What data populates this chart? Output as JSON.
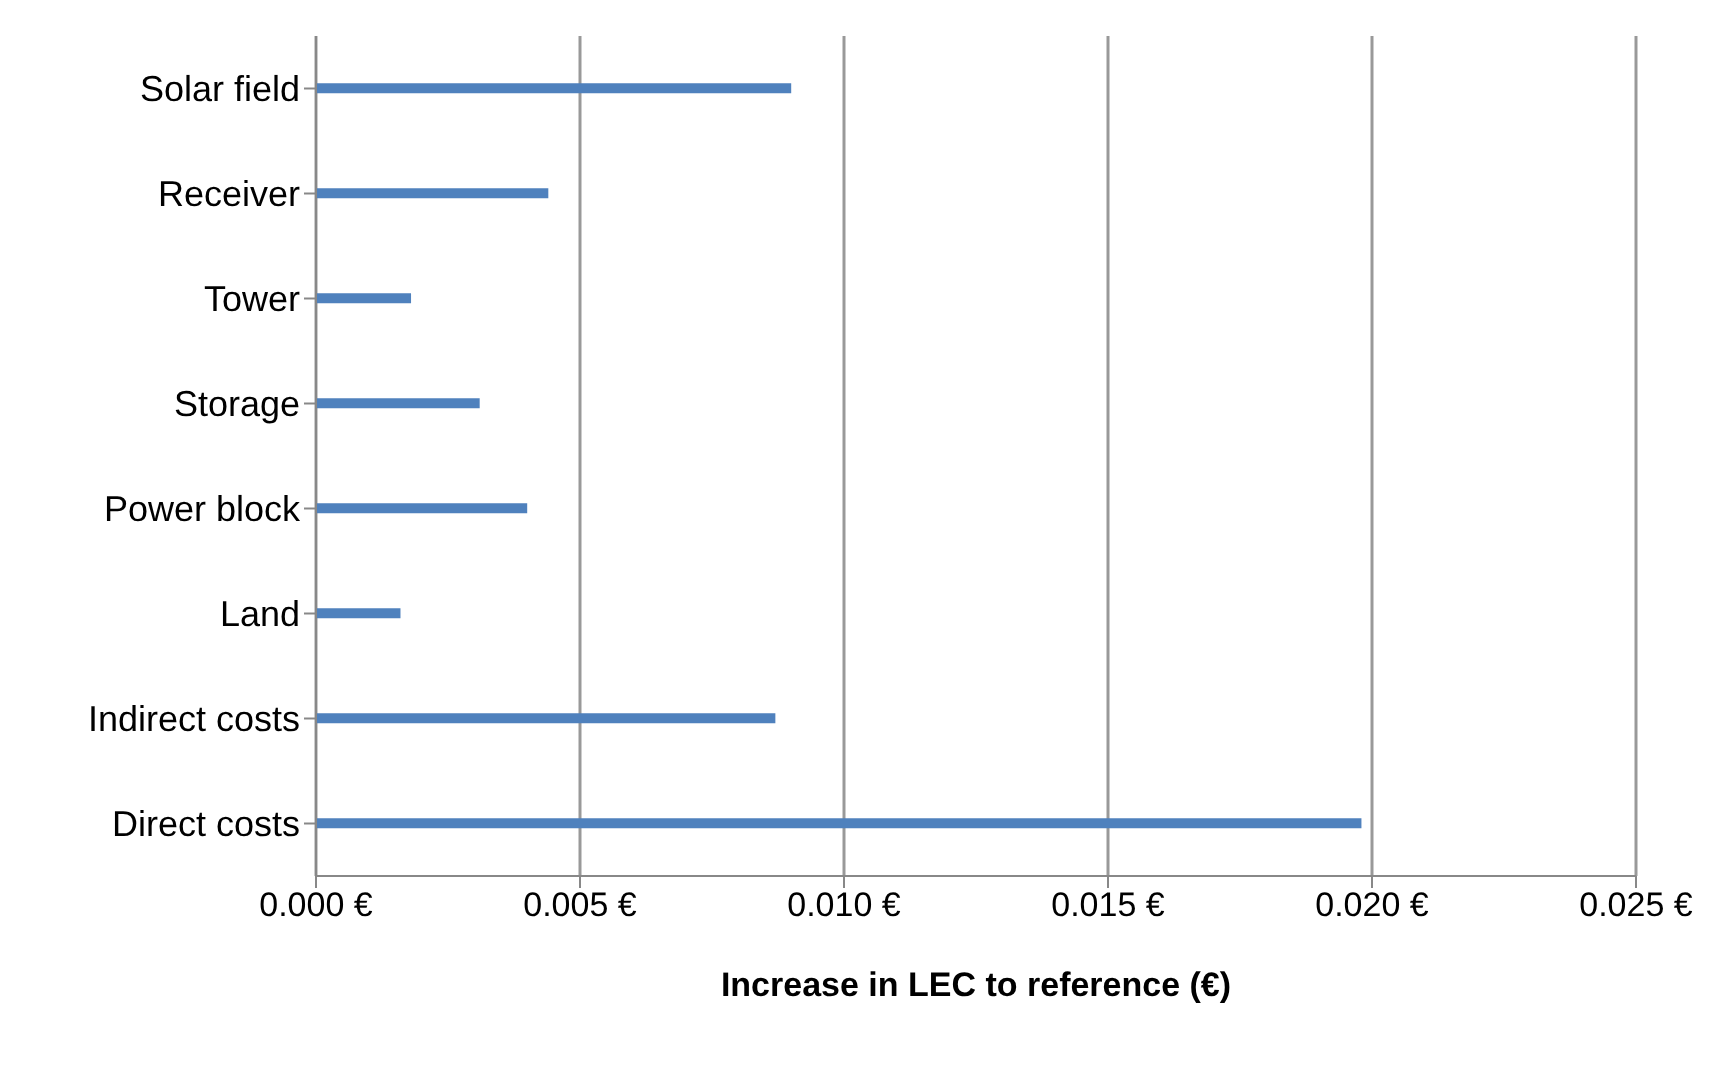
{
  "chart_data": {
    "type": "bar",
    "orientation": "horizontal",
    "xlabel": "Increase in LEC to reference (€)",
    "categories": [
      "Solar field",
      "Receiver",
      "Tower",
      "Storage",
      "Power block",
      "Land",
      "Indirect costs",
      "Direct costs"
    ],
    "values": [
      0.009,
      0.0044,
      0.0018,
      0.0031,
      0.004,
      0.0016,
      0.0087,
      0.0198
    ],
    "color": "#4f81bd",
    "xlim": [
      0,
      0.025
    ],
    "xticks": [
      {
        "value": 0,
        "label": "0.000 €"
      },
      {
        "value": 0.005,
        "label": "0.005 €"
      },
      {
        "value": 0.01,
        "label": "0.010 €"
      },
      {
        "value": 0.015,
        "label": "0.015 €"
      },
      {
        "value": 0.02,
        "label": "0.020 €"
      },
      {
        "value": 0.025,
        "label": "0.025 €"
      }
    ],
    "grid": "x",
    "legend": false
  }
}
